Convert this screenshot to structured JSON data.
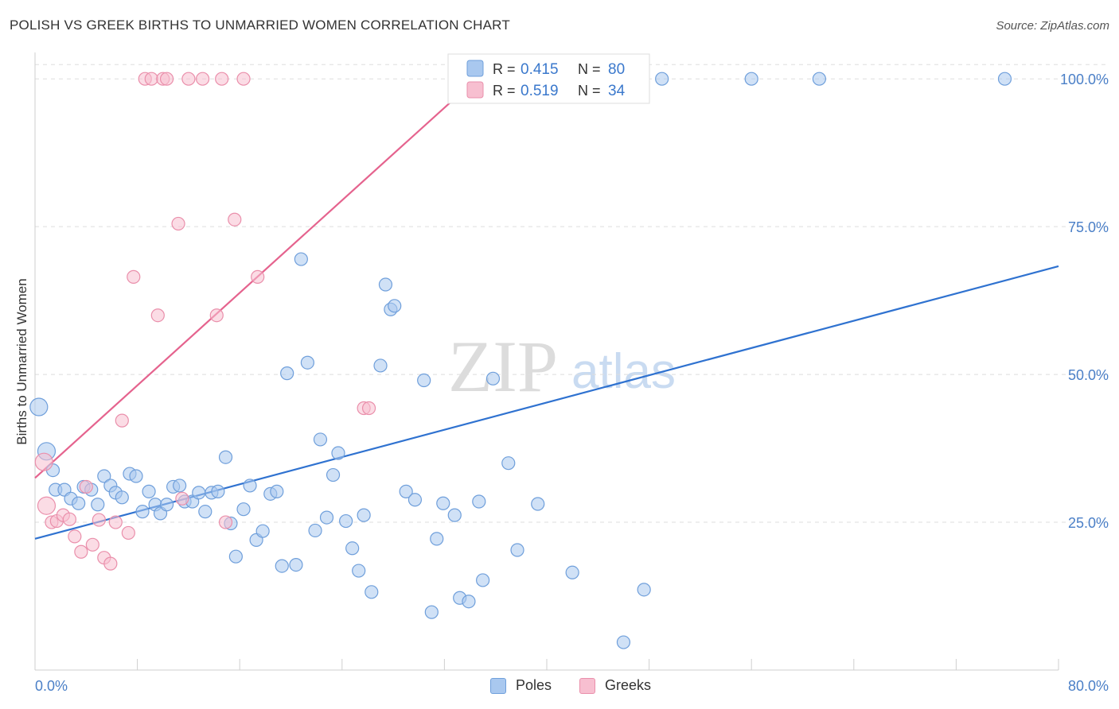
{
  "title": "POLISH VS GREEK BIRTHS TO UNMARRIED WOMEN CORRELATION CHART",
  "source": "Source: ZipAtlas.com",
  "watermark": {
    "zip": "ZIP",
    "atlas": "atlas"
  },
  "colors": {
    "poles_fill": "#a9c8ef",
    "poles_stroke": "#6f9fdb",
    "poles_line": "#2f72d0",
    "greeks_fill": "#f7bfd0",
    "greeks_stroke": "#ea8fab",
    "greeks_line": "#e5638e",
    "value_text": "#3a78cc",
    "axis_text": "#4a7fc7",
    "grid": "#dddddd"
  },
  "legend": {
    "r_label": "R =",
    "n_label": "N =",
    "rows": [
      {
        "series": "Poles",
        "r": "0.415",
        "n": "80"
      },
      {
        "series": "Greeks",
        "r": "0.519",
        "n": "34"
      }
    ]
  },
  "chart_data": {
    "type": "scatter",
    "title": "POLISH VS GREEK BIRTHS TO UNMARRIED WOMEN CORRELATION CHART",
    "xlabel": "",
    "ylabel": "Births to Unmarried Women",
    "xlim": [
      0,
      80
    ],
    "ylim": [
      0,
      105
    ],
    "x_tick_labels": [
      {
        "value": 0,
        "label": "0.0%"
      },
      {
        "value": 80,
        "label": "80.0%"
      }
    ],
    "y_tick_labels": [
      {
        "value": 25,
        "label": "25.0%"
      },
      {
        "value": 50,
        "label": "50.0%"
      },
      {
        "value": 75,
        "label": "75.0%"
      },
      {
        "value": 100,
        "label": "100.0%"
      }
    ],
    "series": [
      {
        "name": "Poles",
        "trend": {
          "x": [
            0,
            80
          ],
          "y": [
            22.2,
            68.3
          ]
        },
        "points": [
          [
            0.3,
            44.5
          ],
          [
            0.9,
            37.0
          ],
          [
            1.4,
            33.8
          ],
          [
            1.6,
            30.5
          ],
          [
            2.3,
            30.5
          ],
          [
            2.8,
            29.0
          ],
          [
            3.4,
            28.2
          ],
          [
            3.8,
            31.0
          ],
          [
            4.4,
            30.5
          ],
          [
            4.9,
            28.0
          ],
          [
            5.4,
            32.8
          ],
          [
            5.9,
            31.2
          ],
          [
            6.3,
            30.0
          ],
          [
            6.8,
            29.2
          ],
          [
            7.4,
            33.2
          ],
          [
            7.9,
            32.8
          ],
          [
            8.4,
            26.8
          ],
          [
            8.9,
            30.2
          ],
          [
            9.4,
            28.0
          ],
          [
            9.8,
            26.5
          ],
          [
            10.3,
            28.0
          ],
          [
            10.8,
            31.0
          ],
          [
            11.3,
            31.2
          ],
          [
            11.7,
            28.5
          ],
          [
            12.3,
            28.5
          ],
          [
            12.8,
            30.0
          ],
          [
            13.3,
            26.8
          ],
          [
            13.8,
            30.0
          ],
          [
            14.3,
            30.2
          ],
          [
            14.9,
            36.0
          ],
          [
            15.3,
            24.8
          ],
          [
            15.7,
            19.2
          ],
          [
            16.3,
            27.2
          ],
          [
            16.8,
            31.2
          ],
          [
            17.3,
            22.0
          ],
          [
            17.8,
            23.5
          ],
          [
            18.4,
            29.8
          ],
          [
            18.9,
            30.2
          ],
          [
            19.3,
            17.6
          ],
          [
            19.7,
            50.2
          ],
          [
            20.4,
            17.8
          ],
          [
            20.8,
            69.5
          ],
          [
            21.3,
            52.0
          ],
          [
            21.9,
            23.6
          ],
          [
            22.3,
            39.0
          ],
          [
            22.8,
            25.8
          ],
          [
            23.3,
            33.0
          ],
          [
            23.7,
            36.7
          ],
          [
            24.3,
            25.2
          ],
          [
            24.8,
            20.6
          ],
          [
            25.3,
            16.8
          ],
          [
            25.7,
            26.2
          ],
          [
            26.3,
            13.2
          ],
          [
            27.0,
            51.5
          ],
          [
            27.4,
            65.2
          ],
          [
            27.8,
            61.0
          ],
          [
            28.1,
            61.6
          ],
          [
            29.0,
            30.2
          ],
          [
            29.7,
            28.8
          ],
          [
            30.4,
            49.0
          ],
          [
            31.0,
            9.8
          ],
          [
            31.4,
            22.2
          ],
          [
            31.9,
            28.2
          ],
          [
            32.8,
            26.2
          ],
          [
            33.2,
            12.2
          ],
          [
            33.6,
            100.0
          ],
          [
            33.9,
            11.6
          ],
          [
            34.7,
            28.5
          ],
          [
            35.0,
            15.2
          ],
          [
            35.8,
            49.3
          ],
          [
            37.0,
            35.0
          ],
          [
            37.7,
            20.3
          ],
          [
            39.3,
            28.1
          ],
          [
            42.0,
            16.5
          ],
          [
            46.0,
            4.7
          ],
          [
            47.6,
            13.6
          ],
          [
            49.0,
            100.0
          ],
          [
            56.0,
            100.0
          ],
          [
            61.3,
            100.0
          ],
          [
            75.8,
            100.0
          ]
        ]
      },
      {
        "name": "Greeks",
        "trend": {
          "x": [
            0,
            34.5
          ],
          "y": [
            32.5,
            100.0
          ]
        },
        "points": [
          [
            0.7,
            35.2
          ],
          [
            0.9,
            27.8
          ],
          [
            1.3,
            25.0
          ],
          [
            1.7,
            25.2
          ],
          [
            2.2,
            26.2
          ],
          [
            2.7,
            25.5
          ],
          [
            3.1,
            22.6
          ],
          [
            3.6,
            20.0
          ],
          [
            4.0,
            31.0
          ],
          [
            4.5,
            21.2
          ],
          [
            5.0,
            25.4
          ],
          [
            5.4,
            19.0
          ],
          [
            5.9,
            18.0
          ],
          [
            6.3,
            25.0
          ],
          [
            6.8,
            42.2
          ],
          [
            7.3,
            23.2
          ],
          [
            7.7,
            66.5
          ],
          [
            8.6,
            100.0
          ],
          [
            9.1,
            100.0
          ],
          [
            9.6,
            60.0
          ],
          [
            10.0,
            100.0
          ],
          [
            10.3,
            100.0
          ],
          [
            11.2,
            75.5
          ],
          [
            11.5,
            29.0
          ],
          [
            12.0,
            100.0
          ],
          [
            13.1,
            100.0
          ],
          [
            14.2,
            60.0
          ],
          [
            14.6,
            100.0
          ],
          [
            14.9,
            25.0
          ],
          [
            15.6,
            76.2
          ],
          [
            16.3,
            100.0
          ],
          [
            17.4,
            66.5
          ],
          [
            25.7,
            44.3
          ],
          [
            26.1,
            44.3
          ]
        ]
      }
    ]
  }
}
